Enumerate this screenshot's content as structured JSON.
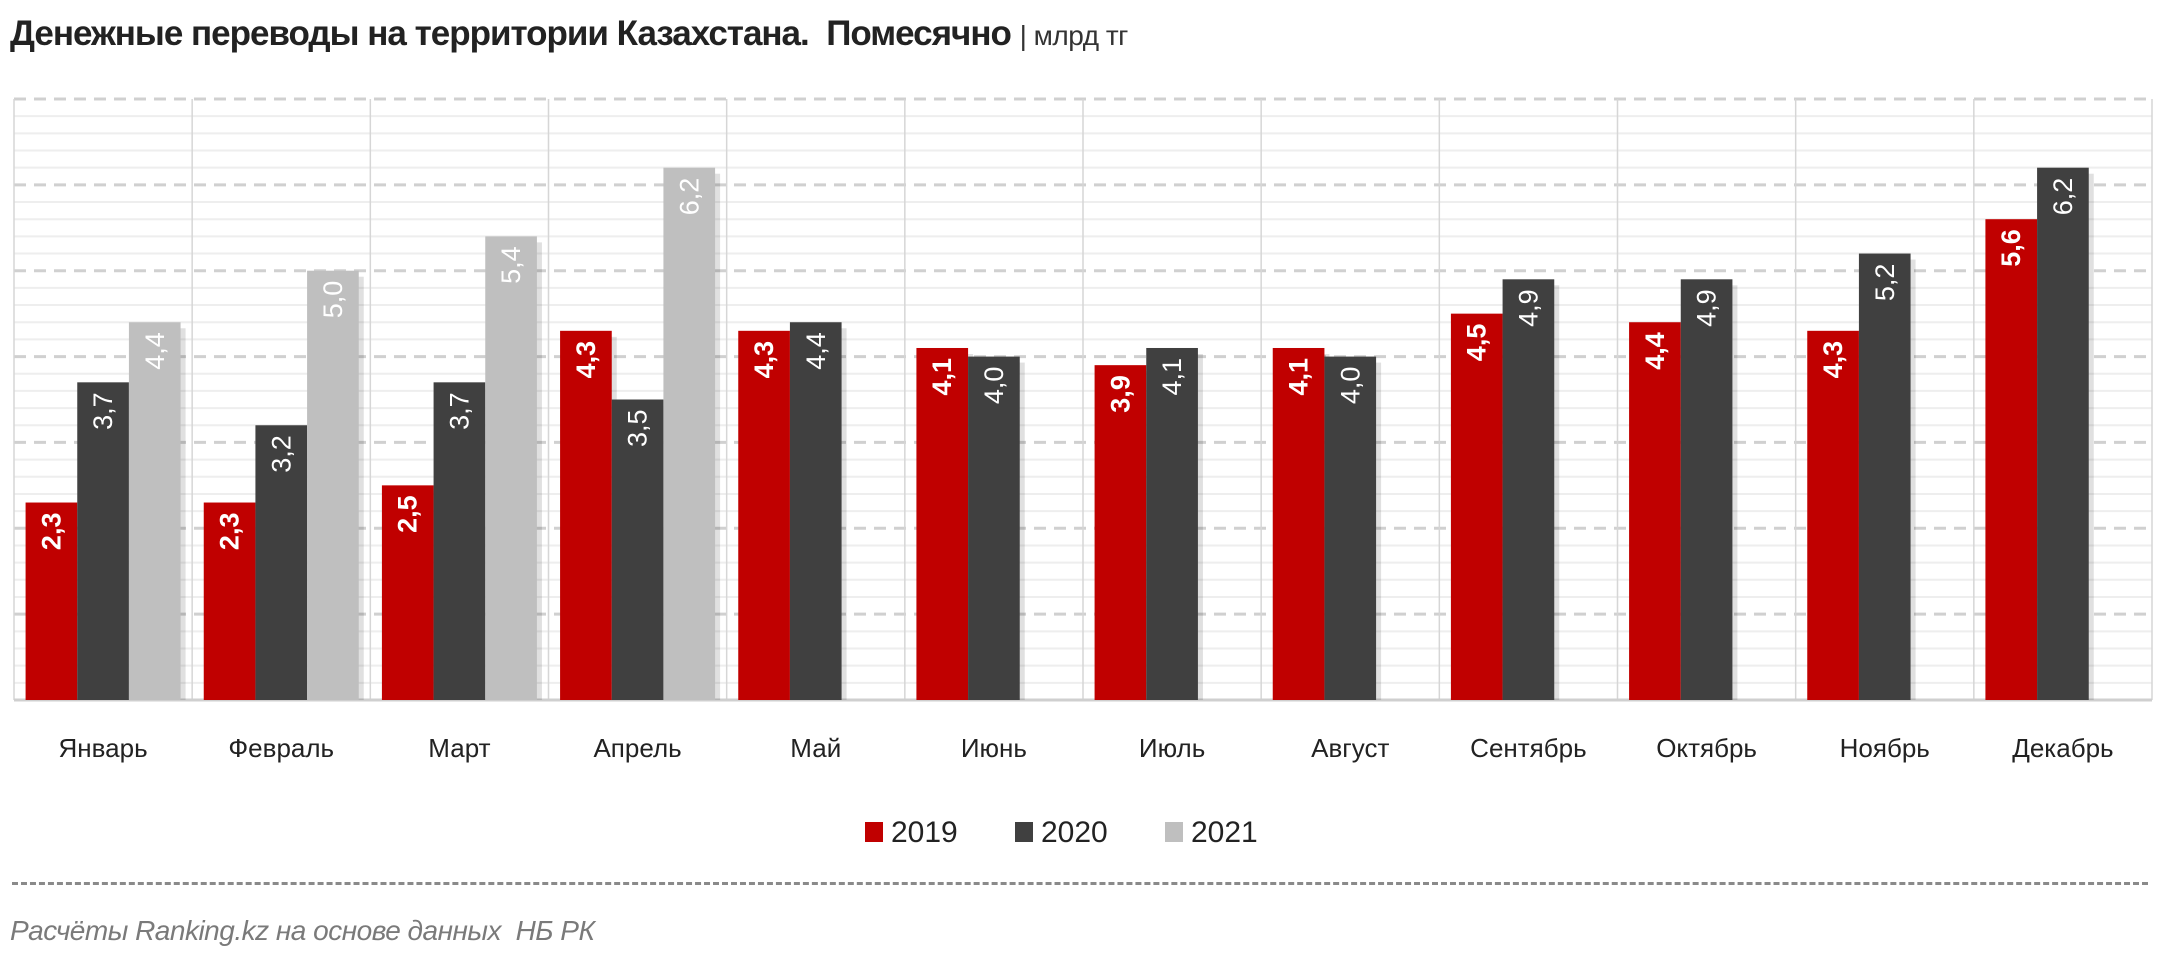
{
  "chart_data": {
    "type": "bar",
    "title": "Денежные переводы на территории Казахстана.  Помесячно",
    "unit": "| млрд тг",
    "categories": [
      "Январь",
      "Февраль",
      "Март",
      "Апрель",
      "Май",
      "Июнь",
      "Июль",
      "Август",
      "Сентябрь",
      "Октябрь",
      "Ноябрь",
      "Декабрь"
    ],
    "series": [
      {
        "name": "2019",
        "color": "#c00000",
        "values": [
          2.3,
          2.3,
          2.5,
          4.3,
          4.3,
          4.1,
          3.9,
          4.1,
          4.5,
          4.4,
          4.3,
          5.6
        ],
        "labels": [
          "2,3",
          "2,3",
          "2,5",
          "4,3",
          "4,3",
          "4,1",
          "3,9",
          "4,1",
          "4,5",
          "4,4",
          "4,3",
          "5,6"
        ]
      },
      {
        "name": "2020",
        "color": "#404040",
        "values": [
          3.7,
          3.2,
          3.7,
          3.5,
          4.4,
          4.0,
          4.1,
          4.0,
          4.9,
          4.9,
          5.2,
          6.2
        ],
        "labels": [
          "3,7",
          "3,2",
          "3,7",
          "3,5",
          "4,4",
          "4,0",
          "4,1",
          "4,0",
          "4,9",
          "4,9",
          "5,2",
          "6,2"
        ]
      },
      {
        "name": "2021",
        "color": "#bfbfbf",
        "values": [
          4.4,
          5.0,
          5.4,
          6.2,
          null,
          null,
          null,
          null,
          null,
          null,
          null,
          null
        ],
        "labels": [
          "4,4",
          "5,0",
          "5,4",
          "6,2",
          "",
          "",
          "",
          "",
          "",
          "",
          "",
          ""
        ]
      }
    ],
    "ylim": [
      0,
      7
    ],
    "grid": true,
    "legend": "bottom",
    "xlabel": "",
    "ylabel": ""
  },
  "footer": "Расчёты Ranking.kz на основе данных  НБ РК"
}
